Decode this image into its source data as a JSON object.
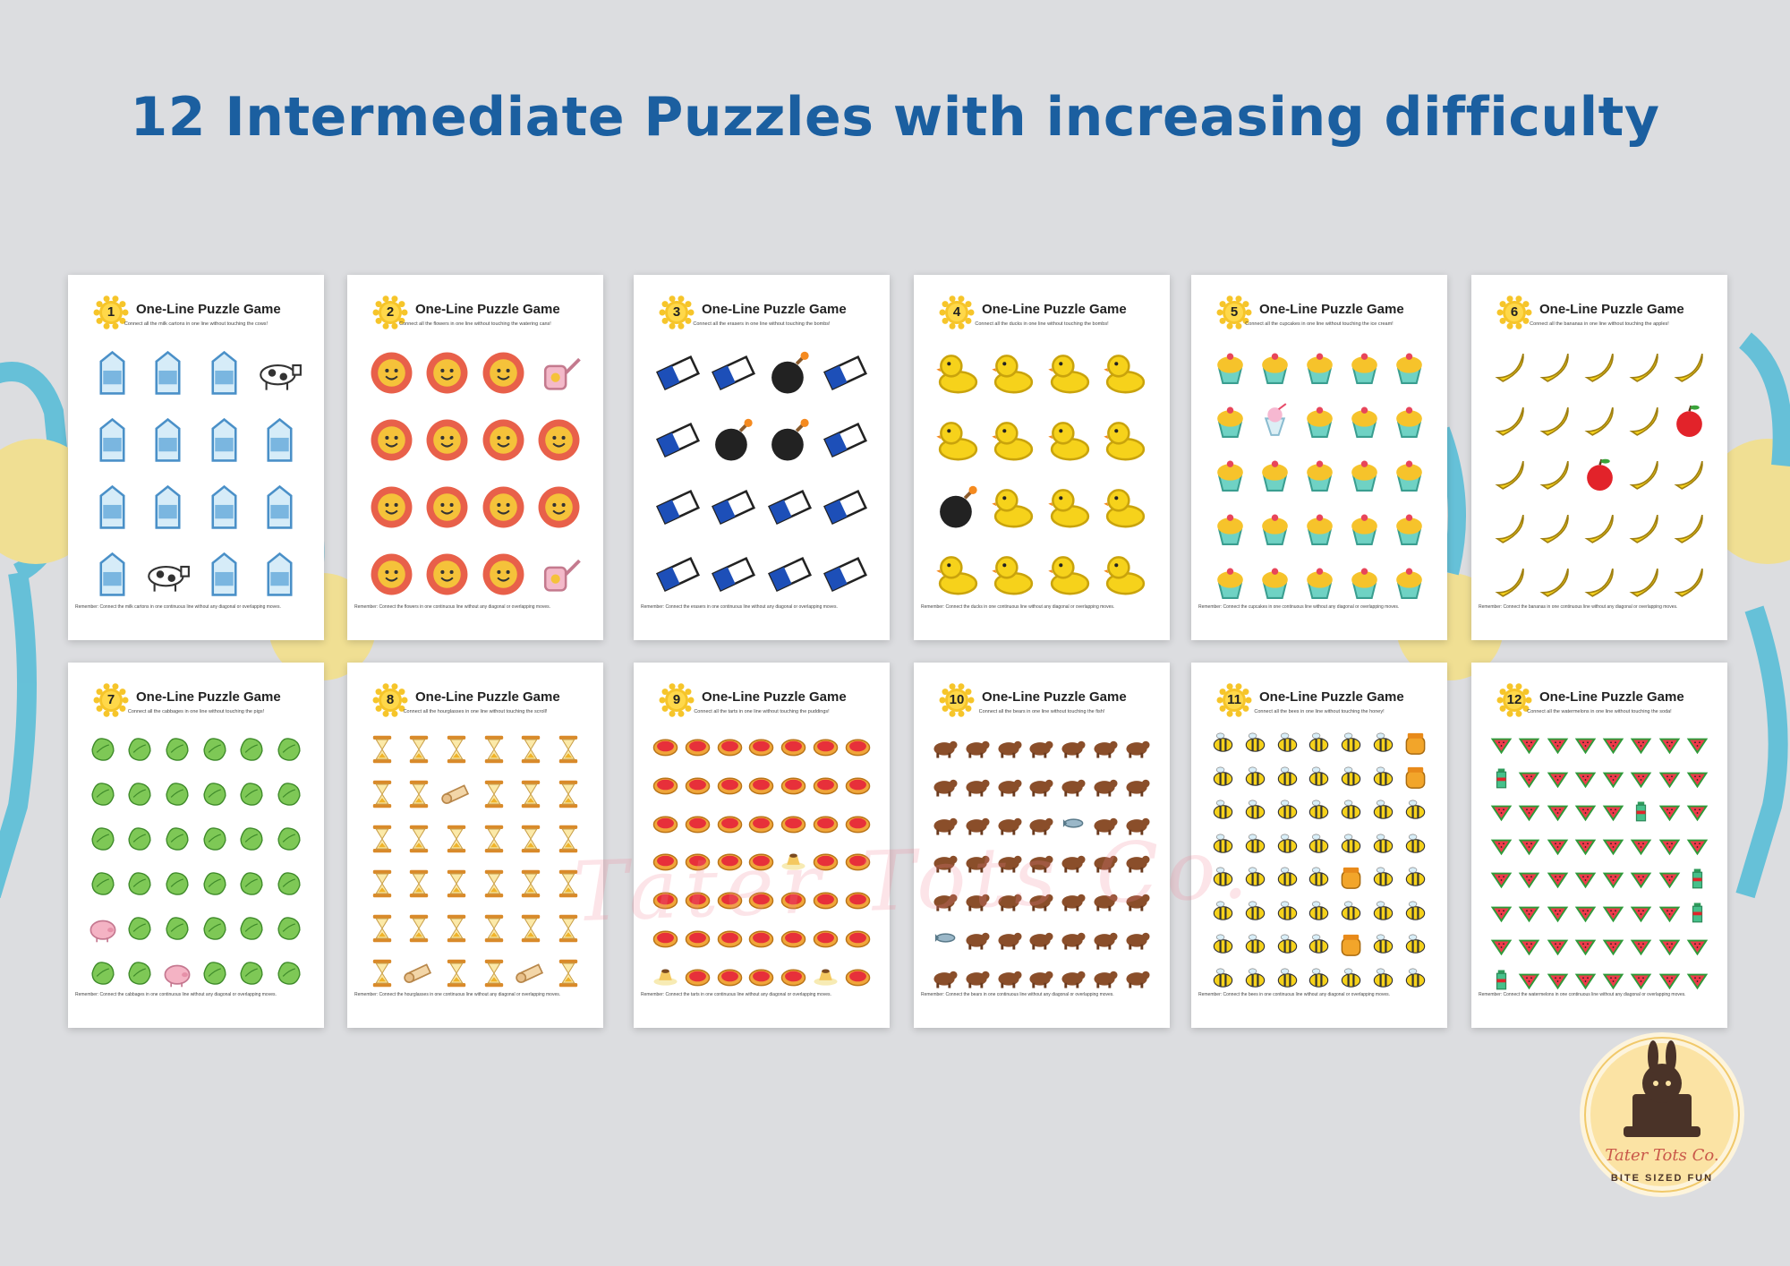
{
  "headline": "12 Intermediate Puzzles with increasing difficulty",
  "watermark": "Tater Tots Co.",
  "logo": {
    "name": "Tater Tots Co.",
    "tagline": "BITE SIZED FUN"
  },
  "colors": {
    "headline": "#1b5fa0",
    "background": "#dcdde0",
    "badge": "#f6c52a"
  },
  "cards": [
    {
      "number": "1",
      "title": "One-Line Puzzle Game",
      "subtitle": "Connect all the milk cartons in one line without touching the cows!",
      "footer": "Remember: Connect the milk cartons in one continuous line without any diagonal or overlapping moves.",
      "cols": 4,
      "rows": 4,
      "item": "milk",
      "obstacle": "cow",
      "obstacles": [
        3,
        13
      ]
    },
    {
      "number": "2",
      "title": "One-Line Puzzle Game",
      "subtitle": "Connect all the flowers in one line without touching the watering cans!",
      "footer": "Remember: Connect the flowers in one continuous line without any diagonal or overlapping moves.",
      "cols": 4,
      "rows": 4,
      "item": "flower",
      "obstacle": "wateringcan",
      "obstacles": [
        3,
        15
      ]
    },
    {
      "number": "3",
      "title": "One-Line Puzzle Game",
      "subtitle": "Connect all the erasers in one line without touching the bombs!",
      "footer": "Remember: Connect the erasers in one continuous line without any diagonal or overlapping moves.",
      "cols": 4,
      "rows": 4,
      "item": "eraser",
      "obstacle": "bomb",
      "obstacles": [
        2,
        5,
        6
      ]
    },
    {
      "number": "4",
      "title": "One-Line Puzzle Game",
      "subtitle": "Connect all the ducks in one line without touching the bombs!",
      "footer": "Remember: Connect the ducks in one continuous line without any diagonal or overlapping moves.",
      "cols": 4,
      "rows": 4,
      "item": "duck",
      "obstacle": "bomb",
      "obstacles": [
        8
      ]
    },
    {
      "number": "5",
      "title": "One-Line Puzzle Game",
      "subtitle": "Connect all the cupcakes in one line without touching the ice cream!",
      "footer": "Remember: Connect the cupcakes in one continuous line without any diagonal or overlapping moves.",
      "cols": 5,
      "rows": 5,
      "item": "cupcake",
      "obstacle": "icecream",
      "obstacles": [
        6
      ]
    },
    {
      "number": "6",
      "title": "One-Line Puzzle Game",
      "subtitle": "Connect all the bananas in one line without touching the apples!",
      "footer": "Remember: Connect the bananas in one continuous line without any diagonal or overlapping moves.",
      "cols": 5,
      "rows": 5,
      "item": "banana",
      "obstacle": "apple",
      "obstacles": [
        9,
        12
      ]
    },
    {
      "number": "7",
      "title": "One-Line Puzzle Game",
      "subtitle": "Connect all the cabbages in one line without touching the pigs!",
      "footer": "Remember: Connect the cabbages in one continuous line without any diagonal or overlapping moves.",
      "cols": 6,
      "rows": 6,
      "item": "cabbage",
      "obstacle": "pig",
      "obstacles": [
        24,
        32
      ]
    },
    {
      "number": "8",
      "title": "One-Line Puzzle Game",
      "subtitle": "Connect all the hourglasses in one line without touching the scroll!",
      "footer": "Remember: Connect the hourglasses in one continuous line without any diagonal or overlapping moves.",
      "cols": 6,
      "rows": 6,
      "item": "hourglass",
      "obstacle": "scroll",
      "obstacles": [
        8,
        31,
        34
      ]
    },
    {
      "number": "9",
      "title": "One-Line Puzzle Game",
      "subtitle": "Connect all the tarts in one line without touching the puddings!",
      "footer": "Remember: Connect the tarts in one continuous line without any diagonal or overlapping moves.",
      "cols": 7,
      "rows": 7,
      "item": "tart",
      "obstacle": "pudding",
      "obstacles": [
        25,
        47,
        42
      ]
    },
    {
      "number": "10",
      "title": "One-Line Puzzle Game",
      "subtitle": "Connect all the bears in one line without touching the fish!",
      "footer": "Remember: Connect the bears in one continuous line without any diagonal or overlapping moves.",
      "cols": 7,
      "rows": 7,
      "item": "bear",
      "obstacle": "fish",
      "obstacles": [
        18,
        35
      ]
    },
    {
      "number": "11",
      "title": "One-Line Puzzle Game",
      "subtitle": "Connect all the bees in one line without touching the honey!",
      "footer": "Remember: Connect the bees in one continuous line without any diagonal or overlapping moves.",
      "cols": 7,
      "rows": 8,
      "item": "bee",
      "obstacle": "honey",
      "obstacles": [
        6,
        13,
        32,
        46
      ]
    },
    {
      "number": "12",
      "title": "One-Line Puzzle Game",
      "subtitle": "Connect all the watermelons in one line without touching the soda!",
      "footer": "Remember: Connect the watermelons in one continuous line without any diagonal or overlapping moves.",
      "cols": 8,
      "rows": 8,
      "item": "watermelon",
      "obstacle": "soda",
      "obstacles": [
        8,
        21,
        39,
        47,
        56
      ]
    }
  ]
}
